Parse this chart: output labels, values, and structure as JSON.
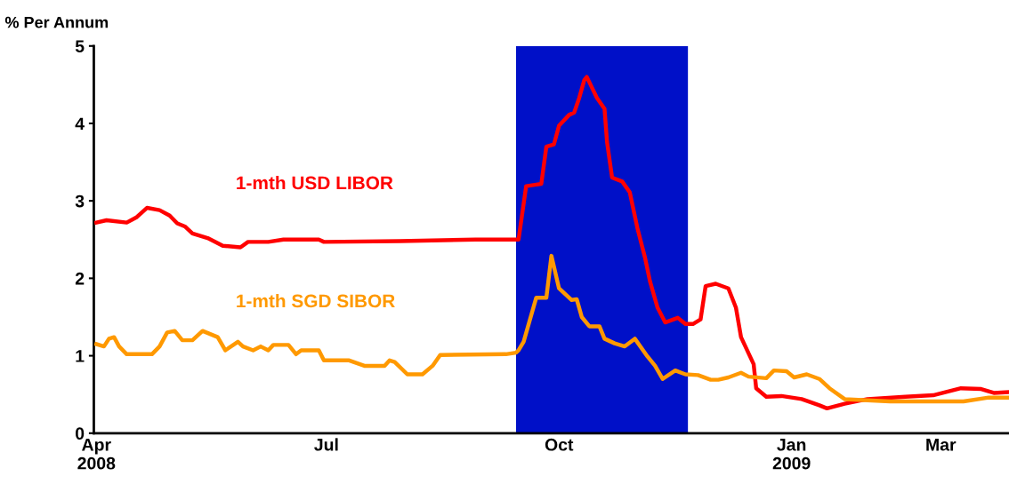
{
  "chart_data": {
    "type": "line",
    "ylabel": "% Per Annum",
    "xlim": [
      "2008-03-31",
      "2009-03-28"
    ],
    "ylim": [
      0,
      5
    ],
    "yticks": [
      0,
      1,
      2,
      3,
      4,
      5
    ],
    "xticks": [
      {
        "value": "2008-04-01",
        "label": "Apr\n2008"
      },
      {
        "value": "2008-07-01",
        "label": "Jul"
      },
      {
        "value": "2008-10-01",
        "label": "Oct"
      },
      {
        "value": "2009-01-01",
        "label": "Jan\n2009"
      },
      {
        "value": "2009-03-01",
        "label": "Mar"
      }
    ],
    "grid": false,
    "legend": false,
    "marker": "none",
    "line_style": "solid",
    "bands": [
      {
        "axis": "x",
        "from": "2008-09-14",
        "to": "2008-11-21",
        "color": "#0010c8"
      }
    ],
    "series": [
      {
        "name": "1-mth USD LIBOR",
        "color": "#ff0000",
        "x": [
          "2008-04-01",
          "2008-04-05",
          "2008-04-13",
          "2008-04-17",
          "2008-04-21",
          "2008-04-26",
          "2008-04-30",
          "2008-05-03",
          "2008-05-06",
          "2008-05-09",
          "2008-05-15",
          "2008-05-21",
          "2008-05-28",
          "2008-05-31",
          "2008-06-08",
          "2008-06-14",
          "2008-06-28",
          "2008-06-30",
          "2008-07-30",
          "2008-08-29",
          "2008-09-14",
          "2008-09-15",
          "2008-09-18",
          "2008-09-22",
          "2008-09-24",
          "2008-09-26",
          "2008-09-29",
          "2008-10-01",
          "2008-10-05",
          "2008-10-07",
          "2008-10-09",
          "2008-10-11",
          "2008-10-12",
          "2008-10-16",
          "2008-10-19",
          "2008-10-20",
          "2008-10-22",
          "2008-10-26",
          "2008-10-29",
          "2008-11-01",
          "2008-11-04",
          "2008-11-06",
          "2008-11-09",
          "2008-11-12",
          "2008-11-17",
          "2008-11-20",
          "2008-11-23",
          "2008-11-26",
          "2008-11-28",
          "2008-12-02",
          "2008-12-07",
          "2008-12-10",
          "2008-12-12",
          "2008-12-17",
          "2008-12-18",
          "2008-12-22",
          "2008-12-28",
          "2009-01-05",
          "2009-01-12",
          "2009-01-15",
          "2009-01-22",
          "2009-01-31",
          "2009-02-15",
          "2009-02-26",
          "2009-03-09",
          "2009-03-17",
          "2009-03-22",
          "2009-03-28"
        ],
        "values": [
          2.72,
          2.75,
          2.72,
          2.79,
          2.91,
          2.88,
          2.81,
          2.71,
          2.67,
          2.58,
          2.52,
          2.42,
          2.4,
          2.47,
          2.47,
          2.5,
          2.5,
          2.47,
          2.48,
          2.5,
          2.5,
          2.5,
          3.19,
          3.21,
          3.22,
          3.7,
          3.73,
          3.97,
          4.11,
          4.14,
          4.33,
          4.56,
          4.6,
          4.33,
          4.19,
          3.76,
          3.3,
          3.25,
          3.11,
          2.65,
          2.27,
          1.96,
          1.62,
          1.43,
          1.49,
          1.41,
          1.41,
          1.47,
          1.9,
          1.93,
          1.87,
          1.62,
          1.24,
          0.89,
          0.58,
          0.47,
          0.48,
          0.44,
          0.36,
          0.32,
          0.38,
          0.44,
          0.47,
          0.49,
          0.58,
          0.57,
          0.52,
          0.53
        ]
      },
      {
        "name": "1-mth SGD SIBOR",
        "color": "#ff9900",
        "x": [
          "2008-04-01",
          "2008-04-04",
          "2008-04-06",
          "2008-04-08",
          "2008-04-10",
          "2008-04-13",
          "2008-04-23",
          "2008-04-26",
          "2008-04-29",
          "2008-05-02",
          "2008-05-05",
          "2008-05-09",
          "2008-05-13",
          "2008-05-19",
          "2008-05-22",
          "2008-05-27",
          "2008-05-29",
          "2008-06-02",
          "2008-06-05",
          "2008-06-08",
          "2008-06-10",
          "2008-06-16",
          "2008-06-19",
          "2008-06-21",
          "2008-06-28",
          "2008-06-30",
          "2008-07-10",
          "2008-07-16",
          "2008-07-24",
          "2008-07-26",
          "2008-07-28",
          "2008-08-02",
          "2008-08-08",
          "2008-08-12",
          "2008-08-15",
          "2008-09-10",
          "2008-09-14",
          "2008-09-15",
          "2008-09-17",
          "2008-09-22",
          "2008-09-26",
          "2008-09-28",
          "2008-10-01",
          "2008-10-06",
          "2008-10-08",
          "2008-10-10",
          "2008-10-13",
          "2008-10-17",
          "2008-10-19",
          "2008-10-23",
          "2008-10-27",
          "2008-10-31",
          "2008-11-05",
          "2008-11-08",
          "2008-11-11",
          "2008-11-16",
          "2008-11-20",
          "2008-11-25",
          "2008-11-30",
          "2008-12-03",
          "2008-12-07",
          "2008-12-12",
          "2008-12-15",
          "2008-12-22",
          "2008-12-25",
          "2008-12-30",
          "2009-01-02",
          "2009-01-07",
          "2009-01-12",
          "2009-01-16",
          "2009-01-22",
          "2009-02-09",
          "2009-03-10",
          "2009-03-20",
          "2009-03-28"
        ],
        "values": [
          1.15,
          1.12,
          1.22,
          1.24,
          1.12,
          1.02,
          1.02,
          1.12,
          1.3,
          1.32,
          1.2,
          1.2,
          1.32,
          1.24,
          1.07,
          1.18,
          1.12,
          1.07,
          1.12,
          1.07,
          1.14,
          1.14,
          1.02,
          1.07,
          1.07,
          0.94,
          0.94,
          0.87,
          0.87,
          0.94,
          0.92,
          0.76,
          0.76,
          0.87,
          1.01,
          1.02,
          1.04,
          1.07,
          1.18,
          1.75,
          1.75,
          2.29,
          1.87,
          1.72,
          1.73,
          1.5,
          1.38,
          1.38,
          1.22,
          1.16,
          1.12,
          1.22,
          0.99,
          0.87,
          0.7,
          0.81,
          0.76,
          0.75,
          0.69,
          0.69,
          0.72,
          0.78,
          0.73,
          0.71,
          0.81,
          0.8,
          0.72,
          0.76,
          0.7,
          0.58,
          0.44,
          0.41,
          0.41,
          0.46,
          0.46
        ]
      }
    ]
  }
}
